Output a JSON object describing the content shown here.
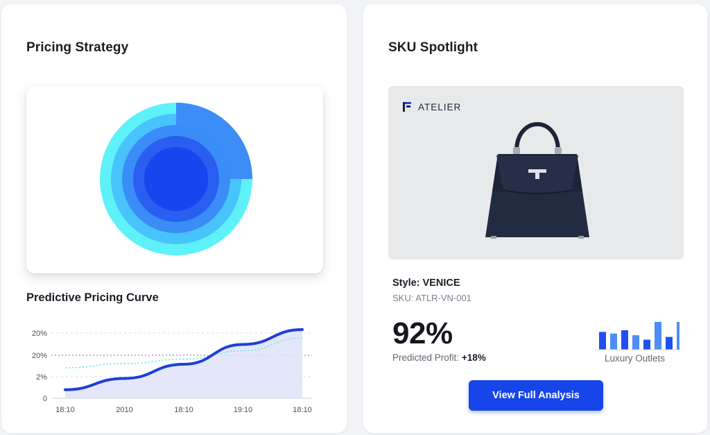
{
  "pricing_card": {
    "title": "Pricing Strategy",
    "radial": {
      "rings": [
        {
          "value": 0.25,
          "color": "#5ef2f8"
        },
        {
          "value": 0.25,
          "color": "#49c3fb"
        },
        {
          "value": 0.25,
          "color": "#3a8df7"
        },
        {
          "value": 0.25,
          "color": "#2a5ef1"
        },
        {
          "value": 0.25,
          "color": "#1945ee"
        }
      ],
      "base_colors": [
        "#5ef2f8",
        "#49c3fb",
        "#3a8df7",
        "#2a5ef1",
        "#1945ee"
      ],
      "highlight_color": "#3d8df7"
    }
  },
  "curve_section": {
    "title": "Predictive Pricing Curve"
  },
  "chart_data": {
    "type": "line",
    "title": "Predictive Pricing Curve",
    "x": [
      "18:10",
      "2010",
      "18:10",
      "19:10",
      "18:10"
    ],
    "y_ticks": [
      "20%",
      "20%",
      "2%",
      "0"
    ],
    "reference_line_tick_index": 1,
    "series": [
      {
        "color": "#1c3fd8",
        "values": [
          0.12,
          0.28,
          0.48,
          0.76,
          0.97
        ],
        "style": "solid"
      },
      {
        "color": "#5de6ee",
        "values": [
          0.43,
          0.49,
          0.55,
          0.67,
          0.85
        ],
        "style": "dotted"
      }
    ],
    "area_fill": "#dfe3f9",
    "grid": true
  },
  "sku_card": {
    "title": "SKU Spotlight",
    "brand": "ATELIER",
    "style_label": "Style: VENICE",
    "sku_label": "SKU: ATLR-VN-001",
    "metric": "92%",
    "profit_label": "Predicted Profit:",
    "profit_value": "+18%",
    "mini_bars": [
      0.64,
      0.58,
      0.7,
      0.52,
      0.36,
      1.0,
      0.46,
      1.0
    ],
    "mini_bar_colors": [
      "#1f4ff0",
      "#4f8df8",
      "#1f4ff0",
      "#4f8df8",
      "#1f4ff0",
      "#4f8df8",
      "#1f4ff0",
      "#4f8df8"
    ],
    "outlet_label": "Luxury Outlets",
    "cta_label": "View Full Analysis"
  }
}
